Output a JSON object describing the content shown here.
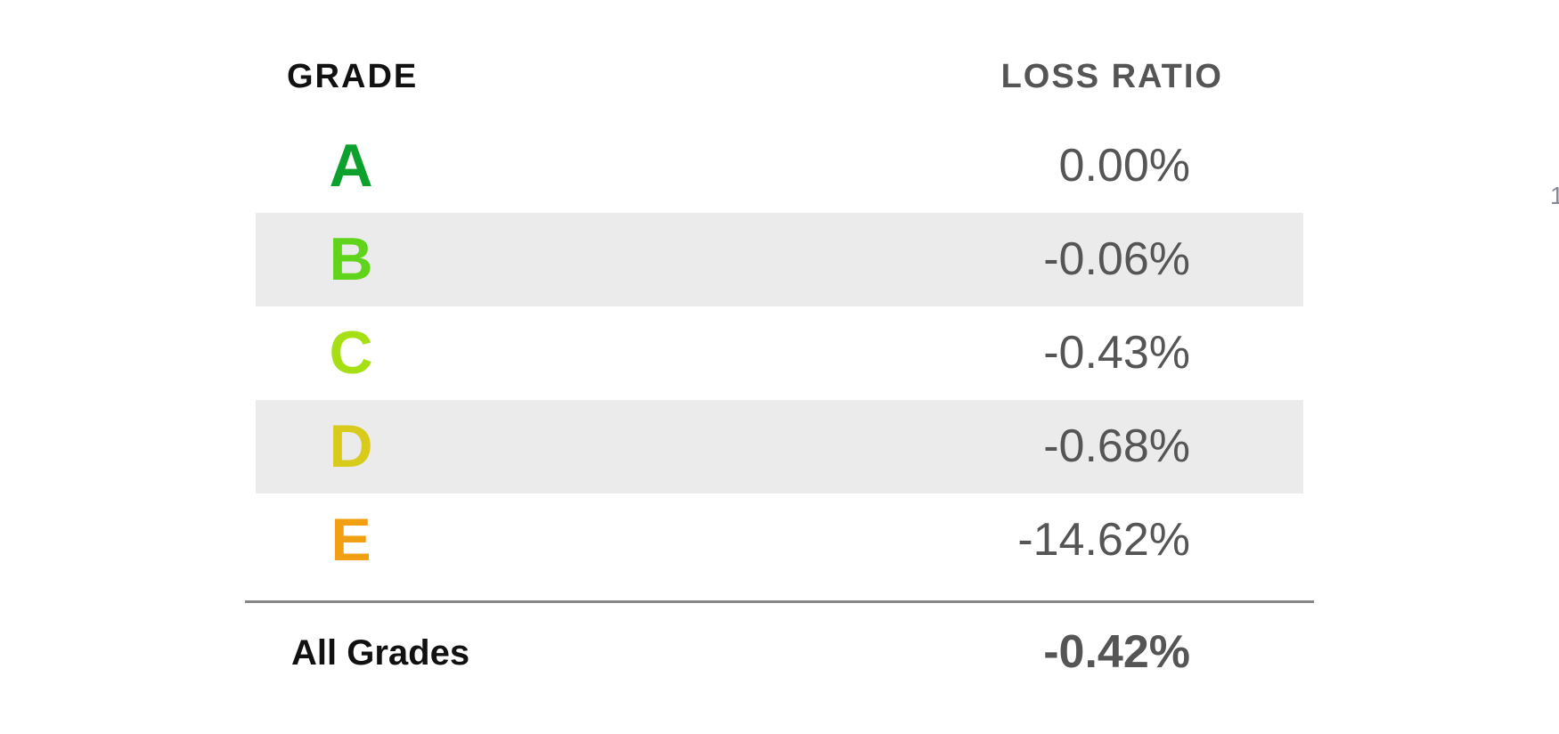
{
  "header": {
    "grade": "GRADE",
    "loss_ratio": "LOSS RATIO"
  },
  "rows": [
    {
      "grade": "A",
      "loss_ratio": "0.00%",
      "color": "#0ca02c"
    },
    {
      "grade": "B",
      "loss_ratio": "-0.06%",
      "color": "#5fd41a"
    },
    {
      "grade": "C",
      "loss_ratio": "-0.43%",
      "color": "#a6df12"
    },
    {
      "grade": "D",
      "loss_ratio": "-0.68%",
      "color": "#d8cb1c"
    },
    {
      "grade": "E",
      "loss_ratio": "-14.62%",
      "color": "#f0a012"
    }
  ],
  "total": {
    "label": "All Grades",
    "loss_ratio": "-0.42%"
  },
  "edge_text": "1"
}
